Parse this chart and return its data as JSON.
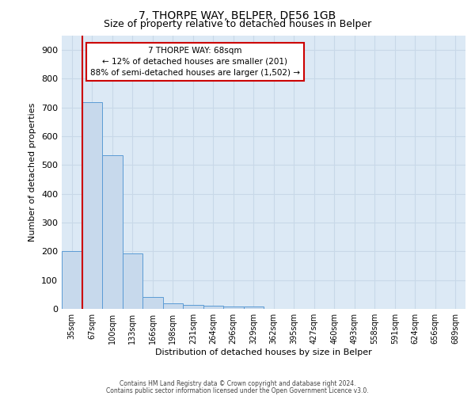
{
  "title": "7, THORPE WAY, BELPER, DE56 1GB",
  "subtitle": "Size of property relative to detached houses in Belper",
  "xlabel": "Distribution of detached houses by size in Belper",
  "ylabel": "Number of detached properties",
  "bar_labels": [
    "35sqm",
    "67sqm",
    "100sqm",
    "133sqm",
    "166sqm",
    "198sqm",
    "231sqm",
    "264sqm",
    "296sqm",
    "329sqm",
    "362sqm",
    "395sqm",
    "427sqm",
    "460sqm",
    "493sqm",
    "558sqm",
    "591sqm",
    "624sqm",
    "656sqm",
    "689sqm"
  ],
  "bar_values": [
    200,
    720,
    535,
    193,
    42,
    20,
    15,
    12,
    9,
    8,
    0,
    0,
    0,
    0,
    0,
    0,
    0,
    0,
    0,
    0
  ],
  "bar_color": "#c7d9ec",
  "bar_edge_color": "#5b9bd5",
  "red_line_x": 0.5,
  "annotation_text": "7 THORPE WAY: 68sqm\n← 12% of detached houses are smaller (201)\n88% of semi-detached houses are larger (1,502) →",
  "annotation_box_color": "#ffffff",
  "annotation_box_edge": "#cc0000",
  "grid_color": "#c8d8e8",
  "background_color": "#dce9f5",
  "ylim": [
    0,
    950
  ],
  "yticks": [
    0,
    100,
    200,
    300,
    400,
    500,
    600,
    700,
    800,
    900
  ],
  "footer1": "Contains HM Land Registry data © Crown copyright and database right 2024.",
  "footer2": "Contains public sector information licensed under the Open Government Licence v3.0.",
  "red_line_color": "#cc0000",
  "title_fontsize": 10,
  "subtitle_fontsize": 9
}
